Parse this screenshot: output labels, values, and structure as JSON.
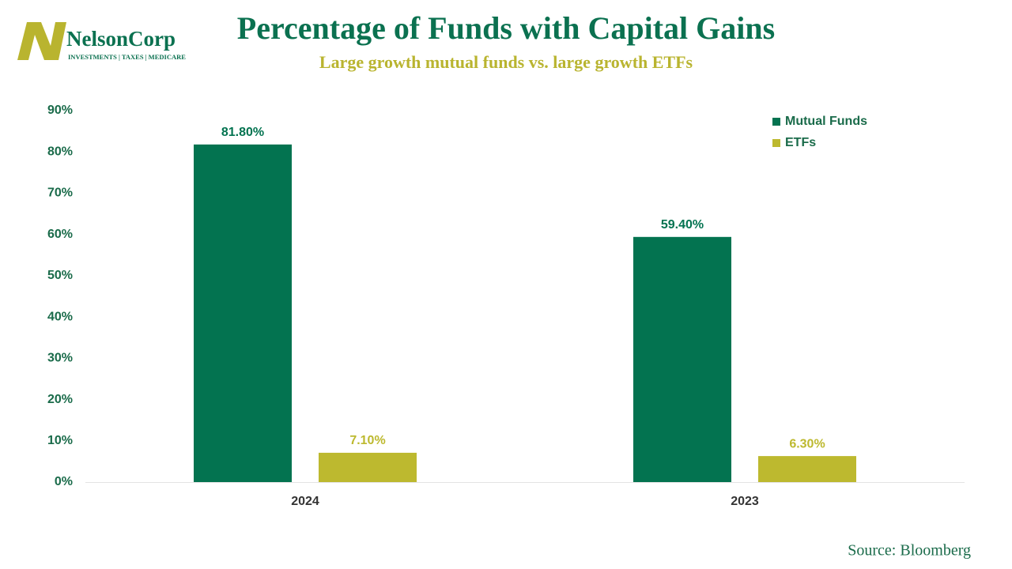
{
  "logo": {
    "name": "NelsonCorp",
    "tagline": "Investments | Taxes | Medicare"
  },
  "chart_data": {
    "type": "bar",
    "title": "Percentage of Funds with Capital Gains",
    "subtitle": "Large growth mutual funds vs. large growth ETFs",
    "categories": [
      "2024",
      "2023"
    ],
    "series": [
      {
        "name": "Mutual Funds",
        "color": "#037350",
        "values": [
          81.8,
          59.4
        ],
        "value_labels": [
          "81.80%",
          "59.40%"
        ]
      },
      {
        "name": "ETFs",
        "color": "#bdb92f",
        "values": [
          7.1,
          6.3
        ],
        "value_labels": [
          "7.10%",
          "6.30%"
        ]
      }
    ],
    "ylim": [
      0,
      90
    ],
    "yticks": [
      {
        "value": 0,
        "label": "0%"
      },
      {
        "value": 10,
        "label": "10%"
      },
      {
        "value": 20,
        "label": "20%"
      },
      {
        "value": 30,
        "label": "30%"
      },
      {
        "value": 40,
        "label": "40%"
      },
      {
        "value": 50,
        "label": "50%"
      },
      {
        "value": 60,
        "label": "60%"
      },
      {
        "value": 70,
        "label": "70%"
      },
      {
        "value": 80,
        "label": "80%"
      },
      {
        "value": 90,
        "label": "90%"
      }
    ],
    "grid": false,
    "legend": "upper right",
    "source": "Source: Bloomberg"
  }
}
